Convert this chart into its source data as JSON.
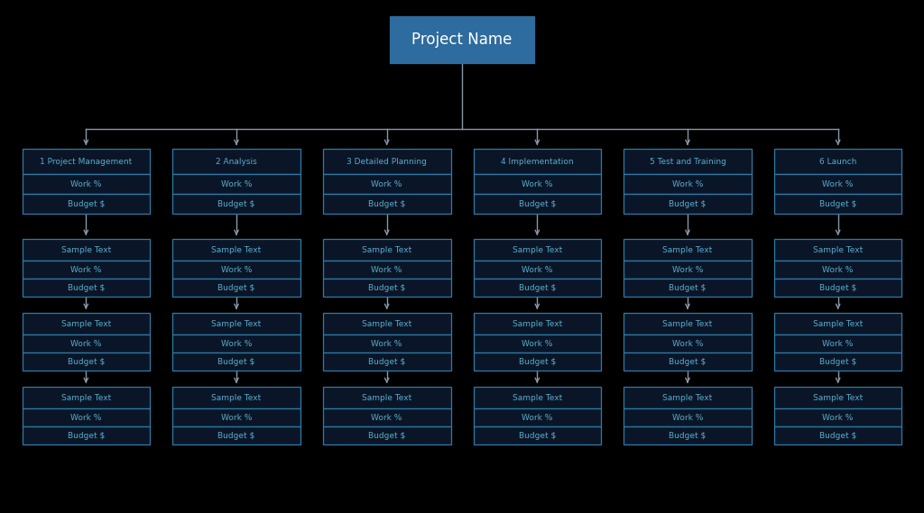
{
  "background_color": "#000000",
  "title": "Project Name",
  "title_box_color": "#2e6b9e",
  "title_text_color": "#ffffff",
  "box_border_color": "#2e7ba6",
  "box_fill_color": "#0a1628",
  "box_text_color": "#5aabcb",
  "arrow_color": "#8899aa",
  "columns": [
    "1 Project Management",
    "2 Analysis",
    "3 Detailed Planning",
    "4 Implementation",
    "5 Test and Training",
    "6 Launch"
  ],
  "level2_sub": [
    "Work %",
    "Budget $"
  ],
  "level3_rows": [
    "Sample Text",
    "Work %",
    "Budget $"
  ]
}
